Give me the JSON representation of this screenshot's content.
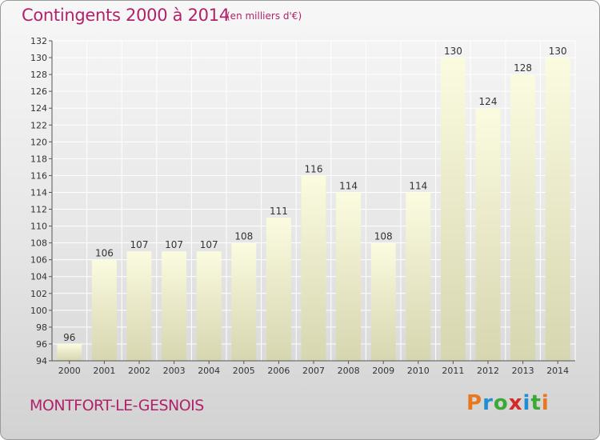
{
  "header": {
    "title": "Contingents 2000 à 2014",
    "subtitle": "(en milliers d'€)"
  },
  "footer": {
    "commune": "MONTFORT-LE-GESNOIS",
    "logo_letters": [
      {
        "char": "P",
        "color": "#e8771e"
      },
      {
        "char": "r",
        "color": "#1f8fd1"
      },
      {
        "char": "o",
        "color": "#3aa935"
      },
      {
        "char": "x",
        "color": "#d52a2a"
      },
      {
        "char": "i",
        "color": "#1f8fd1"
      },
      {
        "char": "t",
        "color": "#3aa935"
      },
      {
        "char": "i",
        "color": "#e8771e"
      }
    ]
  },
  "colors": {
    "accent": "#b0226a",
    "bar_top": "#fbfbe0",
    "bar_bottom": "#d6d6b0"
  },
  "chart_data": {
    "type": "bar",
    "title": "Contingents 2000 à 2014",
    "subtitle": "(en milliers d'€)",
    "categories": [
      "2000",
      "2001",
      "2002",
      "2003",
      "2004",
      "2005",
      "2006",
      "2007",
      "2008",
      "2009",
      "2010",
      "2011",
      "2012",
      "2013",
      "2014"
    ],
    "values": [
      96,
      106,
      107,
      107,
      107,
      108,
      111,
      116,
      114,
      108,
      114,
      130,
      124,
      128,
      130
    ],
    "ylim": [
      94,
      132
    ],
    "yticks": [
      94,
      96,
      98,
      100,
      102,
      104,
      106,
      108,
      110,
      112,
      114,
      116,
      118,
      120,
      122,
      124,
      126,
      128,
      130,
      132
    ],
    "grid": true,
    "legend": "none",
    "data_labels": true
  }
}
